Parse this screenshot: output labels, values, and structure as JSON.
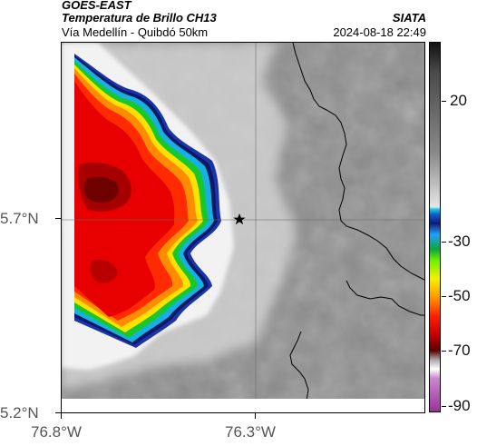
{
  "header": {
    "satellite": "GOES-EAST",
    "product": "Temperatura de Brillo CH13",
    "route": "Vía Medellín - Quibdó 50km",
    "organization": "SIATA",
    "datetime": "2024-08-18 22:49"
  },
  "axes": {
    "y_labels": [
      "5.7°N",
      "5.2°N"
    ],
    "x_labels": [
      "76.8°W",
      "76.3°W"
    ]
  },
  "colorbar": {
    "tick_labels": [
      "20",
      "-30",
      "-50",
      "-70",
      "-90"
    ],
    "units": ""
  },
  "map": {
    "marker_icon": "star-icon",
    "colors": {
      "cold_cloud_red": "#e60000",
      "dark_red": "#a00000",
      "orange": "#ff8c00",
      "yellow": "#ffe000",
      "green": "#18d020",
      "blue": "#1a40c0",
      "navy": "#101a6a",
      "cyan": "#18b8e0",
      "white_edge": "#ffffff",
      "gray_background": "#909090"
    }
  }
}
